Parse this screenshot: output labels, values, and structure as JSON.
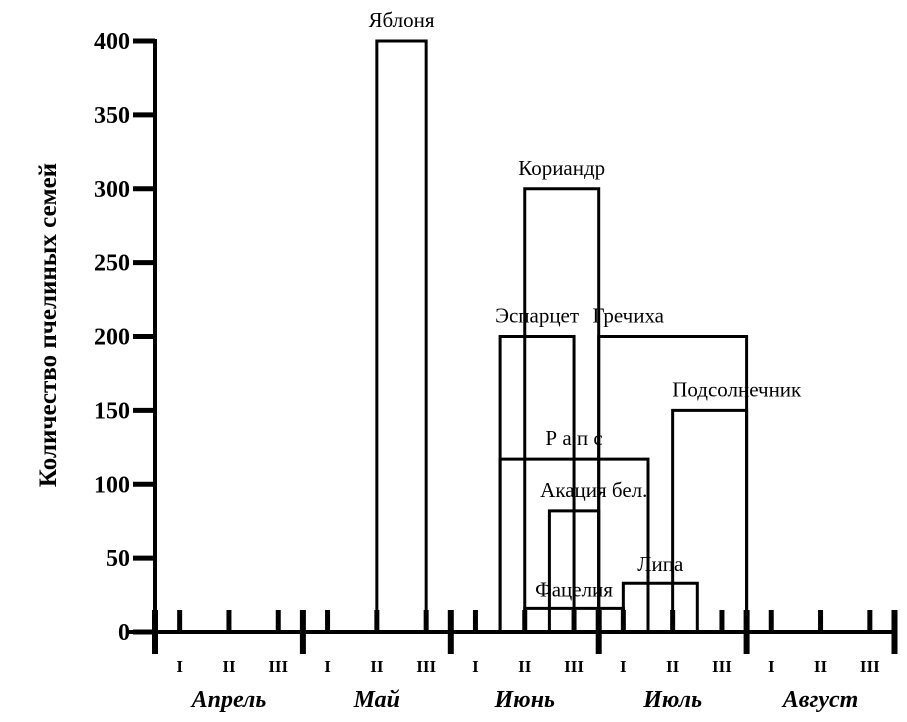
{
  "chart_data": {
    "type": "bar",
    "title": "",
    "xlabel": "",
    "ylabel": "Количество пчелиных семей",
    "ylim": [
      0,
      400
    ],
    "yticks": [
      0,
      50,
      100,
      150,
      200,
      250,
      300,
      350,
      400
    ],
    "months": [
      "Апрель",
      "Май",
      "Июнь",
      "Июль",
      "Август"
    ],
    "decades": [
      "I",
      "II",
      "III"
    ],
    "series": [
      {
        "label": "Яблоня",
        "start": 4.5,
        "end": 5.5,
        "value": 400
      },
      {
        "label": "Кориандр",
        "start": 7.5,
        "end": 9.0,
        "value": 300
      },
      {
        "label": "Эспарцет",
        "start": 7.0,
        "end": 8.5,
        "value": 200
      },
      {
        "label": "Гречиха",
        "start": 9.0,
        "end": 12.0,
        "value": 200
      },
      {
        "label": "Подсолнечник",
        "start": 10.5,
        "end": 12.0,
        "value": 150
      },
      {
        "label": "Р а п с",
        "start": 7.0,
        "end": 10.0,
        "value": 117
      },
      {
        "label": "Акация бел.",
        "start": 8.0,
        "end": 9.0,
        "value": 82
      },
      {
        "label": "Липа",
        "start": 9.5,
        "end": 11.0,
        "value": 33
      },
      {
        "label": "Фацелия",
        "start": 7.5,
        "end": 9.5,
        "value": 16
      }
    ]
  }
}
